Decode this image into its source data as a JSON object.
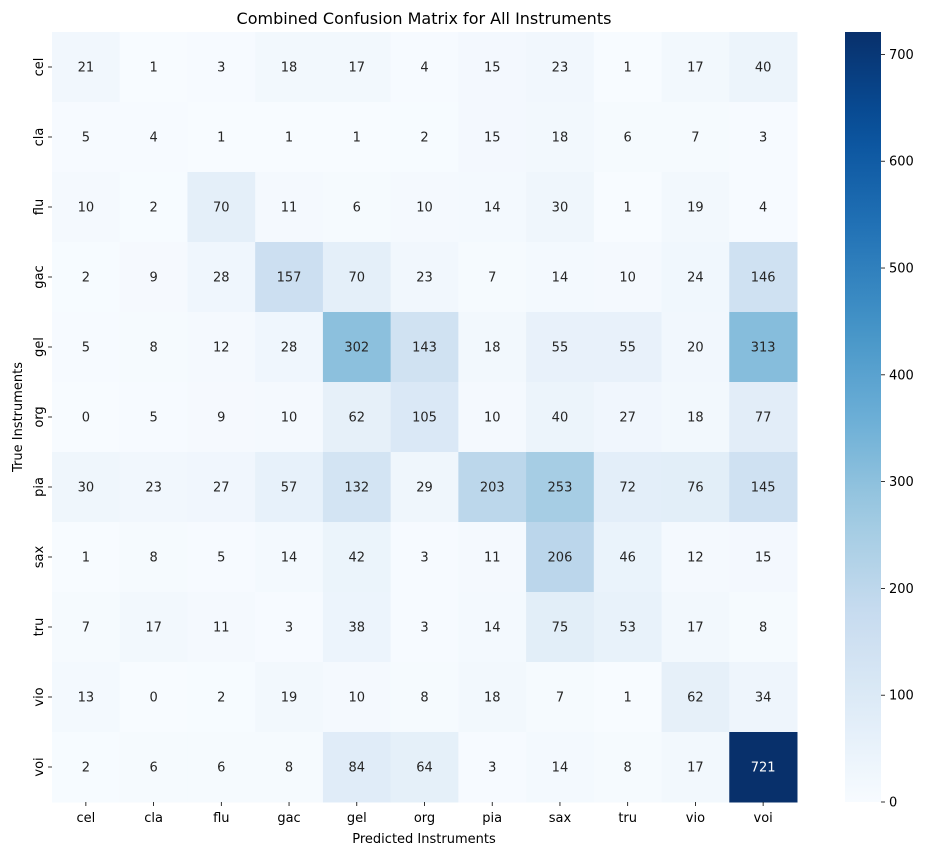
{
  "chart_data": {
    "type": "heatmap",
    "title": "Combined Confusion Matrix for All Instruments",
    "xlabel": "Predicted Instruments",
    "ylabel": "True Instruments",
    "x_categories": [
      "cel",
      "cla",
      "flu",
      "gac",
      "gel",
      "org",
      "pia",
      "sax",
      "tru",
      "vio",
      "voi"
    ],
    "y_categories": [
      "cel",
      "cla",
      "flu",
      "gac",
      "gel",
      "org",
      "pia",
      "sax",
      "tru",
      "vio",
      "voi"
    ],
    "values": [
      [
        21,
        1,
        3,
        18,
        17,
        4,
        15,
        23,
        1,
        17,
        40
      ],
      [
        5,
        4,
        1,
        1,
        1,
        2,
        15,
        18,
        6,
        7,
        3
      ],
      [
        10,
        2,
        70,
        11,
        6,
        10,
        14,
        30,
        1,
        19,
        4
      ],
      [
        2,
        9,
        28,
        157,
        70,
        23,
        7,
        14,
        10,
        24,
        146
      ],
      [
        5,
        8,
        12,
        28,
        302,
        143,
        18,
        55,
        55,
        20,
        313
      ],
      [
        0,
        5,
        9,
        10,
        62,
        105,
        10,
        40,
        27,
        18,
        77
      ],
      [
        30,
        23,
        27,
        57,
        132,
        29,
        203,
        253,
        72,
        76,
        145
      ],
      [
        1,
        8,
        5,
        14,
        42,
        3,
        11,
        206,
        46,
        12,
        15
      ],
      [
        7,
        17,
        11,
        3,
        38,
        3,
        14,
        75,
        53,
        17,
        8
      ],
      [
        13,
        0,
        2,
        19,
        10,
        8,
        18,
        7,
        1,
        62,
        34
      ],
      [
        2,
        6,
        6,
        8,
        84,
        64,
        3,
        14,
        8,
        17,
        721
      ]
    ],
    "colormap": "Blues",
    "vmin": 0,
    "vmax": 721,
    "colorbar_ticks": [
      0,
      100,
      200,
      300,
      400,
      500,
      600,
      700
    ],
    "annotations": true
  }
}
